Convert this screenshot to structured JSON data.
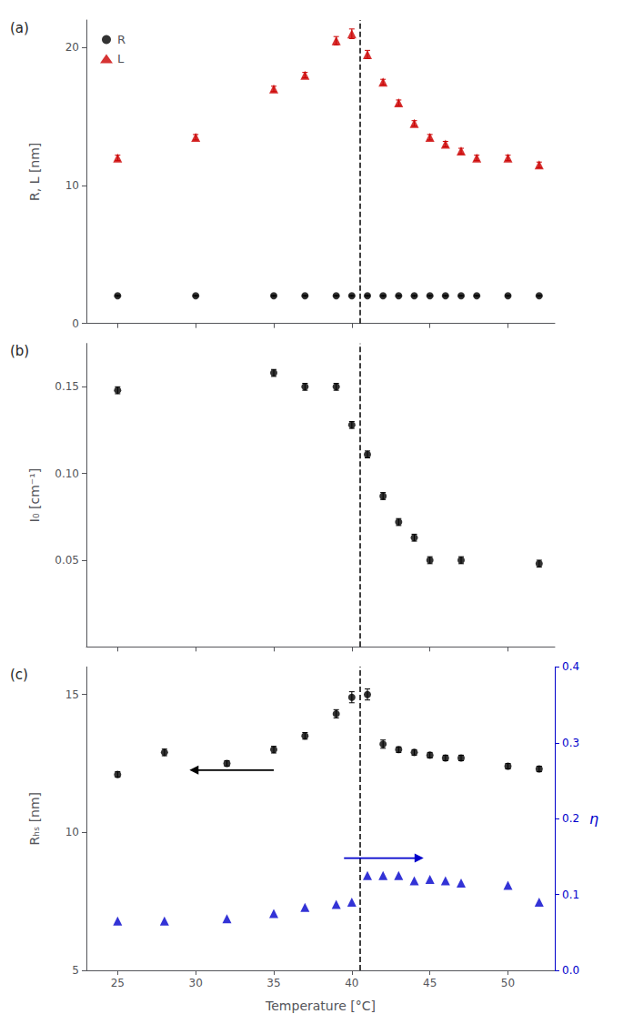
{
  "chart_data": [
    {
      "type": "scatter",
      "title": "(a)",
      "ylabel": "R, L [nm]",
      "xlim": [
        23,
        53
      ],
      "xticks": [
        25,
        30,
        35,
        40,
        45,
        50
      ],
      "ylim": [
        0,
        22
      ],
      "yticks": [
        0,
        10,
        20
      ],
      "grid": false,
      "legend": "upper left",
      "tick_labels": "y",
      "annotations": [
        {
          "type": "vline",
          "x": 40.5,
          "color": "#000000",
          "line_style": "dashed"
        }
      ],
      "series": [
        {
          "name": "R",
          "color": "#000000",
          "marker": "circle",
          "x": [
            25,
            30,
            35,
            37,
            39,
            40,
            41,
            42,
            43,
            44,
            45,
            46,
            47,
            48,
            50,
            52
          ],
          "values": [
            2.0,
            2.0,
            2.0,
            2.0,
            2.0,
            2.0,
            2.0,
            2.0,
            2.0,
            2.0,
            2.0,
            2.0,
            2.0,
            2.0,
            2.0,
            2.0
          ],
          "yerr": [
            0.05,
            0.05,
            0.05,
            0.05,
            0.05,
            0.05,
            0.05,
            0.05,
            0.05,
            0.05,
            0.05,
            0.05,
            0.05,
            0.05,
            0.05,
            0.05
          ]
        },
        {
          "name": "L",
          "color": "#cc0000",
          "marker": "triangle",
          "x": [
            25,
            30,
            35,
            37,
            39,
            40,
            41,
            42,
            43,
            44,
            45,
            46,
            47,
            48,
            50,
            52
          ],
          "values": [
            12.0,
            13.5,
            17.0,
            18.0,
            20.5,
            21.0,
            19.5,
            17.5,
            16.0,
            14.5,
            13.5,
            13.0,
            12.5,
            12.0,
            12.0,
            11.5
          ],
          "yerr": [
            0.2,
            0.2,
            0.2,
            0.2,
            0.3,
            0.35,
            0.3,
            0.2,
            0.2,
            0.2,
            0.2,
            0.2,
            0.2,
            0.2,
            0.2,
            0.2
          ]
        }
      ]
    },
    {
      "type": "scatter",
      "title": "(b)",
      "ylabel": "I₀ [cm⁻¹]",
      "xlim": [
        23,
        53
      ],
      "xticks": [
        25,
        30,
        35,
        40,
        45,
        50
      ],
      "ylim": [
        0.0,
        0.175
      ],
      "yticks": [
        0.05,
        {
          "value": 0.1,
          "label": "0.10"
        },
        0.15
      ],
      "grid": false,
      "tick_labels": "y",
      "annotations": [
        {
          "type": "vline",
          "x": 40.5,
          "color": "#000000",
          "line_style": "dashed"
        }
      ],
      "series": [
        {
          "color": "#000000",
          "marker": "circle",
          "x": [
            25,
            35,
            37,
            39,
            40,
            41,
            42,
            43,
            44,
            45,
            47,
            52
          ],
          "values": [
            0.148,
            0.158,
            0.15,
            0.15,
            0.128,
            0.111,
            0.087,
            0.072,
            0.063,
            0.05,
            0.05,
            0.048
          ],
          "yerr": [
            0.002,
            0.002,
            0.002,
            0.002,
            0.002,
            0.002,
            0.002,
            0.002,
            0.002,
            0.002,
            0.002,
            0.002
          ]
        }
      ]
    },
    {
      "type": "scatter",
      "title": "(c)",
      "xlabel": "Temperature [°C]",
      "ylabel": "Rₕₛ [nm]",
      "y2label": "η",
      "xlim": [
        23,
        53
      ],
      "xticks": [
        25,
        30,
        35,
        40,
        45,
        50
      ],
      "ylim": [
        5,
        16
      ],
      "yticks": [
        5,
        10,
        15
      ],
      "y2lim": [
        0.0,
        0.4
      ],
      "y2ticks": [
        {
          "value": 0,
          "label": "0.0"
        },
        0.1,
        0.2,
        0.3,
        0.4
      ],
      "grid": false,
      "annotations": [
        {
          "type": "vline",
          "x": 40.5,
          "color": "#000000",
          "line_style": "dashed"
        },
        {
          "type": "arrow",
          "direction": "left",
          "color": "#000000"
        },
        {
          "type": "arrow",
          "direction": "right",
          "color": "#0000cc"
        }
      ],
      "series": [
        {
          "color": "#000000",
          "marker": "circle",
          "x": [
            25,
            28,
            32,
            35,
            37,
            39,
            40,
            41,
            42,
            43,
            44,
            45,
            46,
            47,
            50,
            52
          ],
          "values": [
            12.1,
            12.9,
            12.5,
            13.0,
            13.5,
            14.3,
            14.9,
            15.0,
            13.2,
            13.0,
            12.9,
            12.8,
            12.7,
            12.7,
            12.4,
            12.3
          ],
          "yerr": [
            0.1,
            0.12,
            0.1,
            0.12,
            0.12,
            0.15,
            0.2,
            0.2,
            0.15,
            0.1,
            0.1,
            0.1,
            0.1,
            0.1,
            0.1,
            0.1
          ]
        },
        {
          "color": "#0000cc",
          "marker": "triangle",
          "axis": "y2",
          "x": [
            25,
            28,
            32,
            35,
            37,
            39,
            40,
            41,
            42,
            43,
            44,
            45,
            46,
            47,
            50,
            52
          ],
          "values": [
            0.065,
            0.065,
            0.068,
            0.075,
            0.083,
            0.087,
            0.09,
            0.125,
            0.125,
            0.125,
            0.118,
            0.12,
            0.118,
            0.115,
            0.112,
            0.09
          ]
        }
      ]
    }
  ]
}
